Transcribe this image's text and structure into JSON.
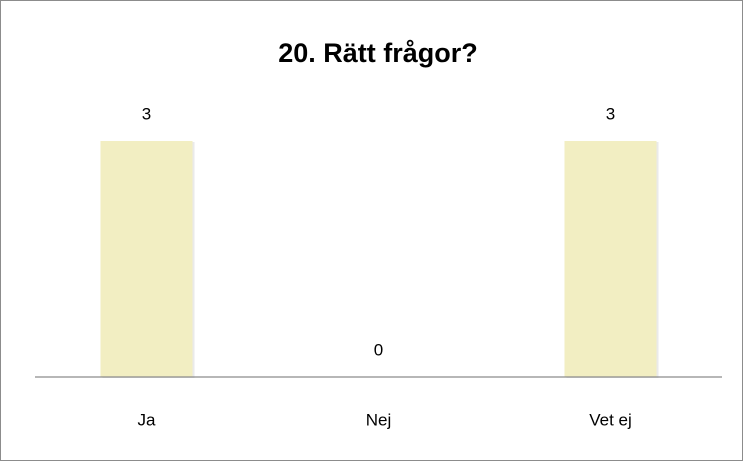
{
  "chart_data": {
    "type": "bar",
    "title": "20. Rätt frågor?",
    "categories": [
      "Ja",
      "Nej",
      "Vet ej"
    ],
    "values": [
      3,
      0,
      3
    ],
    "color": "#f2eec2"
  }
}
